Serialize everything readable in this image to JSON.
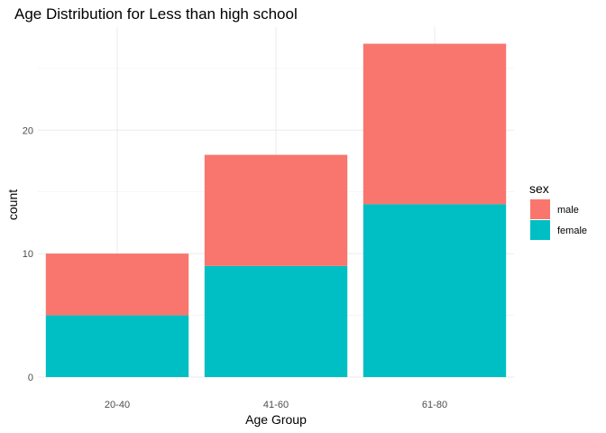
{
  "chart_data": {
    "type": "bar",
    "stacked": true,
    "title": "Age Distribution for Less than high school",
    "xlabel": "Age Group",
    "ylabel": "count",
    "categories": [
      "20-40",
      "41-60",
      "61-80"
    ],
    "series": [
      {
        "name": "female",
        "values": [
          5,
          9,
          14
        ],
        "color": "#00BFC4"
      },
      {
        "name": "male",
        "values": [
          5,
          9,
          13
        ],
        "color": "#F8766D"
      }
    ],
    "ylim": [
      0,
      28.35
    ],
    "yticks": [
      0,
      10,
      20
    ],
    "grid": true,
    "legend": {
      "title": "sex",
      "position": "right",
      "entries": [
        {
          "label": "male",
          "color": "#F8766D"
        },
        {
          "label": "female",
          "color": "#00BFC4"
        }
      ]
    }
  }
}
